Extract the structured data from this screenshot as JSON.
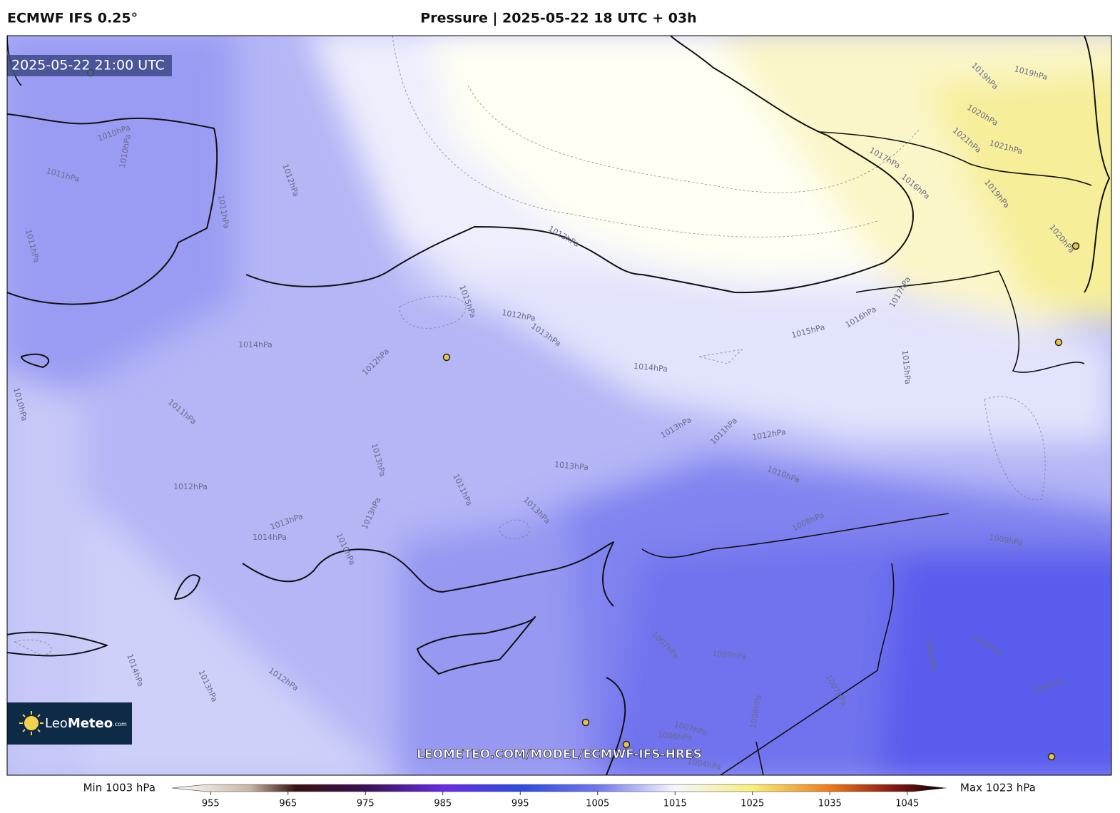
{
  "header": {
    "model": "ECMWF IFS 0.25°",
    "title": "Pressure | 2025-05-22 18 UTC + 03h"
  },
  "map": {
    "valid_time": "2025-05-22 21:00 UTC",
    "watermark": "LEOMETEO.COM/MODEL/ECMWF-IFS-HRES",
    "logo": {
      "first": "Leo",
      "second": "Meteo",
      "suffix": ".com"
    },
    "contour_labels": [
      "1010hPa",
      "1010hPa",
      "1011hPa",
      "1012hPa",
      "1011hPa",
      "1011hPa",
      "1013hPa",
      "1015hPa",
      "1012hPa",
      "1013hPa",
      "1014hPa",
      "1012hPa",
      "1014hPa",
      "1015hPa",
      "1016hPa",
      "1017hPa",
      "1015hPa",
      "1011hPa",
      "1013hPa",
      "1011hPa",
      "1012hPa",
      "1013hPa",
      "1013hPa",
      "1011hPa",
      "1010hPa",
      "1012hPa",
      "1013hPa",
      "1013hPa",
      "1013hPa",
      "1014hPa",
      "1010hPa",
      "1008hPa",
      "1009hPa",
      "1010hPa",
      "1007hPa",
      "1009hPa",
      "1012hPa",
      "1013hPa",
      "1014hPa",
      "1006hPa",
      "1005hPa",
      "1004hPa",
      "1007hPa",
      "1008hPa",
      "1007hPa",
      "1006hPa",
      "1004hPa",
      "1019hPa",
      "1019hPa",
      "1020hPa",
      "1021hPa",
      "1021hPa",
      "1017hPa",
      "1016hPa",
      "1019hPa",
      "1020hPa"
    ]
  },
  "colorbar": {
    "min_label": "Min 1003 hPa",
    "max_label": "Max 1023 hPa",
    "lim": [
      950,
      1050
    ],
    "ticks": [
      955,
      965,
      975,
      985,
      995,
      1005,
      1015,
      1025,
      1035,
      1045
    ]
  }
}
